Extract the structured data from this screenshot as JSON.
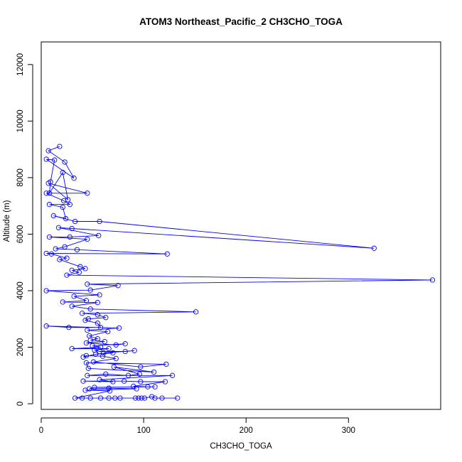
{
  "chart_data": {
    "type": "line",
    "title": "ATOM3 Northeast_Pacific_2 CH3CHO_TOGA",
    "xlabel": "CH3CHO_TOGA",
    "ylabel": "Altitude (m)",
    "xlim": [
      0,
      390
    ],
    "ylim": [
      -200,
      12800
    ],
    "xticks": [
      0,
      100,
      200,
      300
    ],
    "yticks": [
      0,
      2000,
      4000,
      6000,
      8000,
      10000,
      12000
    ],
    "grid": false,
    "markers": "open-circle",
    "color": "#0000ff",
    "series": [
      {
        "points": [
          [
            18,
            9100
          ],
          [
            7,
            8950
          ],
          [
            23,
            8550
          ],
          [
            32,
            7980
          ],
          [
            5,
            8650
          ],
          [
            13,
            8620
          ],
          [
            9,
            7850
          ],
          [
            8,
            7450
          ],
          [
            21,
            8180
          ],
          [
            26,
            7220
          ],
          [
            7,
            7800
          ],
          [
            45,
            7450
          ],
          [
            5,
            7450
          ],
          [
            22,
            7180
          ],
          [
            28,
            7050
          ],
          [
            8,
            7050
          ],
          [
            21,
            6950
          ],
          [
            24,
            6550
          ],
          [
            12,
            6650
          ],
          [
            33,
            6450
          ],
          [
            57,
            6450
          ],
          [
            325,
            5500
          ],
          [
            30,
            6200
          ],
          [
            17,
            6230
          ],
          [
            56,
            5950
          ],
          [
            28,
            5900
          ],
          [
            8,
            5900
          ],
          [
            45,
            5820
          ],
          [
            23,
            5550
          ],
          [
            14,
            5480
          ],
          [
            35,
            5450
          ],
          [
            123,
            5300
          ],
          [
            5,
            5320
          ],
          [
            10,
            5300
          ],
          [
            25,
            5150
          ],
          [
            18,
            5100
          ],
          [
            38,
            4850
          ],
          [
            43,
            4780
          ],
          [
            30,
            4720
          ],
          [
            37,
            4650
          ],
          [
            25,
            4550
          ],
          [
            382,
            4380
          ],
          [
            45,
            4230
          ],
          [
            75,
            4180
          ],
          [
            48,
            4020
          ],
          [
            5,
            4000
          ],
          [
            57,
            3850
          ],
          [
            32,
            3800
          ],
          [
            44,
            3650
          ],
          [
            21,
            3600
          ],
          [
            55,
            3580
          ],
          [
            30,
            3450
          ],
          [
            48,
            3350
          ],
          [
            151,
            3250
          ],
          [
            40,
            3200
          ],
          [
            55,
            3150
          ],
          [
            63,
            3050
          ],
          [
            46,
            3000
          ],
          [
            43,
            2950
          ],
          [
            55,
            2850
          ],
          [
            58,
            2700
          ],
          [
            27,
            2700
          ],
          [
            5,
            2750
          ],
          [
            76,
            2680
          ],
          [
            45,
            2600
          ],
          [
            65,
            2550
          ],
          [
            47,
            2400
          ],
          [
            55,
            2300
          ],
          [
            48,
            2250
          ],
          [
            62,
            2200
          ],
          [
            44,
            2150
          ],
          [
            73,
            2080
          ],
          [
            82,
            2120
          ],
          [
            50,
            2050
          ],
          [
            58,
            2000
          ],
          [
            30,
            1950
          ],
          [
            66,
            1950
          ],
          [
            52,
            1900
          ],
          [
            57,
            1850
          ],
          [
            82,
            1850
          ],
          [
            91,
            1880
          ],
          [
            61,
            1800
          ],
          [
            70,
            1800
          ],
          [
            53,
            1750
          ],
          [
            41,
            1650
          ],
          [
            44,
            1700
          ],
          [
            60,
            1680
          ],
          [
            73,
            1600
          ],
          [
            51,
            1480
          ],
          [
            97,
            1300
          ],
          [
            122,
            1400
          ],
          [
            44,
            1450
          ],
          [
            46,
            1250
          ],
          [
            110,
            1120
          ],
          [
            71,
            1300
          ],
          [
            96,
            1050
          ],
          [
            85,
            1000
          ],
          [
            63,
            1050
          ],
          [
            45,
            1000
          ],
          [
            128,
            1000
          ],
          [
            57,
            850
          ],
          [
            70,
            780
          ],
          [
            41,
            800
          ],
          [
            81,
            800
          ],
          [
            97,
            780
          ],
          [
            121,
            780
          ],
          [
            90,
            620
          ],
          [
            104,
            600
          ],
          [
            111,
            600
          ],
          [
            52,
            580
          ],
          [
            47,
            530
          ],
          [
            66,
            550
          ],
          [
            93,
            530
          ],
          [
            43,
            480
          ],
          [
            67,
            450
          ],
          [
            33,
            200
          ],
          [
            40,
            200
          ],
          [
            48,
            200
          ],
          [
            58,
            200
          ],
          [
            66,
            200
          ],
          [
            72,
            200
          ],
          [
            77,
            200
          ],
          [
            92,
            200
          ],
          [
            95,
            200
          ],
          [
            98,
            200
          ],
          [
            101,
            200
          ],
          [
            108,
            250
          ],
          [
            111,
            200
          ],
          [
            118,
            200
          ],
          [
            133,
            200
          ]
        ]
      }
    ]
  }
}
